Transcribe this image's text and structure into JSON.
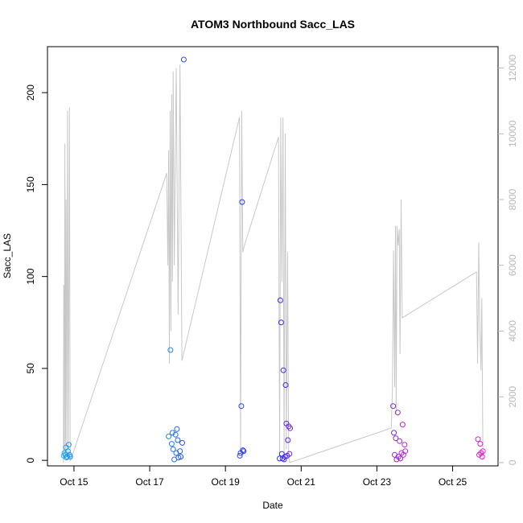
{
  "chart_data": {
    "type": "scatter",
    "title": "ATOM3 Northbound Sacc_LAS",
    "xlabel": "Date",
    "ylabel": "Sacc_LAS",
    "x_ticks": [
      "Oct 15",
      "Oct 17",
      "Oct 19",
      "Oct 21",
      "Oct 23",
      "Oct 25"
    ],
    "x_tick_days": [
      15,
      17,
      19,
      21,
      23,
      25
    ],
    "xlim_days": [
      14.3,
      26.2
    ],
    "ylim": [
      -3,
      225
    ],
    "y_ticks": [
      0,
      50,
      100,
      150,
      200
    ],
    "right_axis_ylim": [
      -100,
      12650
    ],
    "right_axis_ticks": [
      0,
      2000,
      4000,
      6000,
      8000,
      10000,
      12000
    ],
    "grid": false,
    "colors": {
      "line": "#c8c8c8",
      "right_axis": "#b8b8b8",
      "gradient_start": "#1eb4ef",
      "gradient_mid": "#2a2aee",
      "gradient_end": "#ee22cc"
    },
    "points": [
      [
        14.73,
        2.5
      ],
      [
        14.75,
        4
      ],
      [
        14.77,
        3
      ],
      [
        14.79,
        7
      ],
      [
        14.8,
        1.5
      ],
      [
        14.82,
        2
      ],
      [
        14.84,
        5
      ],
      [
        14.86,
        8.5
      ],
      [
        14.88,
        3
      ],
      [
        14.9,
        2
      ],
      [
        17.5,
        13
      ],
      [
        17.55,
        60
      ],
      [
        17.58,
        9
      ],
      [
        17.6,
        15
      ],
      [
        17.62,
        6
      ],
      [
        17.65,
        0.5
      ],
      [
        17.68,
        14
      ],
      [
        17.7,
        4
      ],
      [
        17.72,
        17
      ],
      [
        17.74,
        11
      ],
      [
        17.76,
        1.5
      ],
      [
        17.8,
        5
      ],
      [
        17.82,
        2
      ],
      [
        17.86,
        9.5
      ],
      [
        17.9,
        218
      ],
      [
        19.38,
        2.5
      ],
      [
        19.4,
        4
      ],
      [
        19.42,
        29.5
      ],
      [
        19.44,
        140.5
      ],
      [
        19.46,
        5.5
      ],
      [
        19.48,
        5
      ],
      [
        20.43,
        1
      ],
      [
        20.45,
        87
      ],
      [
        20.47,
        75
      ],
      [
        20.49,
        3.5
      ],
      [
        20.51,
        1
      ],
      [
        20.53,
        49
      ],
      [
        20.55,
        0.5
      ],
      [
        20.57,
        2
      ],
      [
        20.59,
        41
      ],
      [
        20.61,
        20
      ],
      [
        20.63,
        2.5
      ],
      [
        20.65,
        11
      ],
      [
        20.67,
        18.5
      ],
      [
        20.69,
        3.5
      ],
      [
        20.71,
        17.5
      ],
      [
        23.43,
        29.5
      ],
      [
        23.45,
        15
      ],
      [
        23.47,
        3
      ],
      [
        23.5,
        12
      ],
      [
        23.52,
        0.5
      ],
      [
        23.55,
        26
      ],
      [
        23.57,
        2
      ],
      [
        23.6,
        10.5
      ],
      [
        23.62,
        1
      ],
      [
        23.65,
        4
      ],
      [
        23.68,
        19.5
      ],
      [
        23.7,
        3
      ],
      [
        23.73,
        8.5
      ],
      [
        23.75,
        5
      ],
      [
        25.67,
        11.5
      ],
      [
        25.7,
        3
      ],
      [
        25.73,
        9
      ],
      [
        25.75,
        4
      ],
      [
        25.78,
        2
      ],
      [
        25.8,
        5
      ]
    ],
    "right_series": [
      [
        14.72,
        0
      ],
      [
        14.73,
        5400
      ],
      [
        14.745,
        100
      ],
      [
        14.76,
        9700
      ],
      [
        14.775,
        200
      ],
      [
        14.79,
        8000
      ],
      [
        14.81,
        300
      ],
      [
        14.83,
        10700
      ],
      [
        14.85,
        200
      ],
      [
        14.88,
        10800
      ],
      [
        14.9,
        50
      ],
      [
        14.92,
        100
      ],
      [
        17.45,
        8800
      ],
      [
        17.48,
        6000
      ],
      [
        17.5,
        9500
      ],
      [
        17.52,
        3000
      ],
      [
        17.54,
        10700
      ],
      [
        17.56,
        4000
      ],
      [
        17.58,
        11200
      ],
      [
        17.6,
        5500
      ],
      [
        17.62,
        11900
      ],
      [
        17.65,
        6000
      ],
      [
        17.7,
        12000
      ],
      [
        17.75,
        4500
      ],
      [
        17.8,
        12100
      ],
      [
        17.85,
        3100
      ],
      [
        19.37,
        10500
      ],
      [
        19.4,
        300
      ],
      [
        19.43,
        10700
      ],
      [
        19.46,
        6400
      ],
      [
        19.5,
        6600
      ],
      [
        20.4,
        9900
      ],
      [
        20.43,
        200
      ],
      [
        20.46,
        10500
      ],
      [
        20.49,
        5500
      ],
      [
        20.52,
        10500
      ],
      [
        20.55,
        300
      ],
      [
        20.58,
        10000
      ],
      [
        20.61,
        400
      ],
      [
        20.64,
        6400
      ],
      [
        20.67,
        150
      ],
      [
        20.7,
        0
      ],
      [
        23.38,
        1050
      ],
      [
        23.41,
        2200
      ],
      [
        23.44,
        6450
      ],
      [
        23.47,
        2300
      ],
      [
        23.49,
        7200
      ],
      [
        23.51,
        1500
      ],
      [
        23.53,
        7200
      ],
      [
        23.56,
        6600
      ],
      [
        23.59,
        7100
      ],
      [
        23.61,
        3300
      ],
      [
        23.64,
        8000
      ],
      [
        23.67,
        4400
      ],
      [
        25.63,
        5800
      ],
      [
        25.66,
        3000
      ],
      [
        25.69,
        6700
      ],
      [
        25.72,
        4000
      ],
      [
        25.75,
        2800
      ],
      [
        25.77,
        5000
      ],
      [
        25.8,
        100
      ]
    ]
  }
}
